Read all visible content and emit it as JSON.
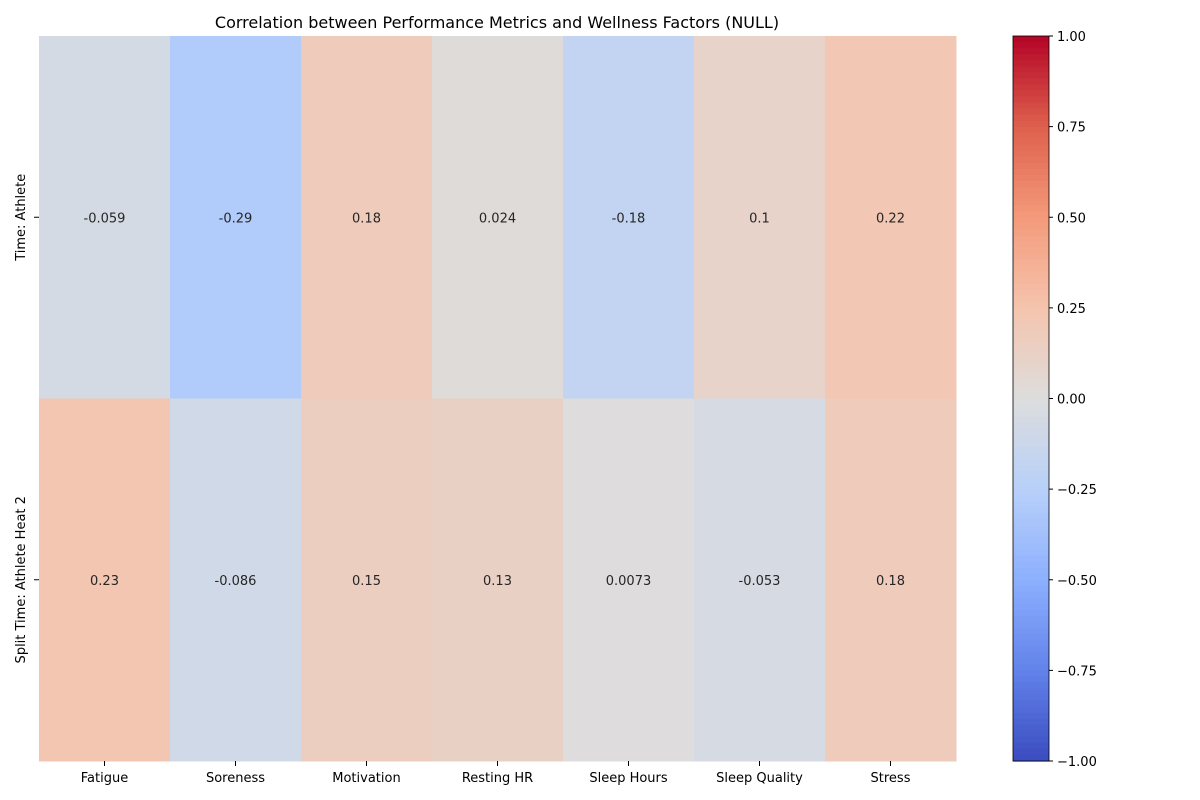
{
  "chart_data": {
    "type": "heatmap",
    "title": "Correlation between Performance Metrics and Wellness Factors (NULL)",
    "columns": [
      "Fatigue",
      "Soreness",
      "Motivation",
      "Resting HR",
      "Sleep Hours",
      "Sleep Quality",
      "Stress"
    ],
    "rows": [
      "Time: Athlete",
      "Split Time: Athlete Heat 2"
    ],
    "values": [
      [
        -0.059,
        -0.29,
        0.18,
        0.024,
        -0.18,
        0.1,
        0.22
      ],
      [
        0.23,
        -0.086,
        0.15,
        0.13,
        0.0073,
        -0.053,
        0.18
      ]
    ],
    "value_labels": [
      [
        "-0.059",
        "-0.29",
        "0.18",
        "0.024",
        "-0.18",
        "0.1",
        "0.22"
      ],
      [
        "0.23",
        "-0.086",
        "0.15",
        "0.13",
        "0.0073",
        "-0.053",
        "0.18"
      ]
    ],
    "colorscale": "coolwarm",
    "vmin": -1,
    "vmax": 1,
    "colorbar_ticks": [
      "−1.00",
      "−0.75",
      "−0.50",
      "−0.25",
      "0.00",
      "0.25",
      "0.50",
      "0.75",
      "1.00"
    ],
    "colorbar_tick_values": [
      -1,
      -0.75,
      -0.5,
      -0.25,
      0,
      0.25,
      0.5,
      0.75,
      1
    ]
  }
}
